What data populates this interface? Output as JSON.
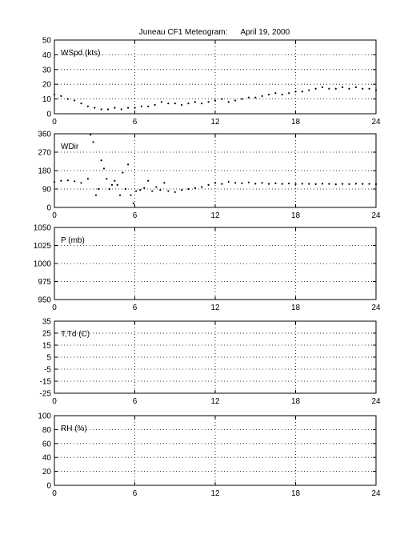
{
  "title": "Juneau CF1 Meteogram:      April 19, 2000",
  "chart_data": [
    {
      "type": "scatter",
      "label": "WSpd (kts)",
      "xlim": [
        0,
        24
      ],
      "ylim": [
        0,
        50
      ],
      "xticks": [
        0,
        6,
        12,
        18,
        24
      ],
      "yticks": [
        0,
        10,
        20,
        30,
        40,
        50
      ],
      "grid": true,
      "series": [
        {
          "x": [
            0,
            0.5,
            1,
            1.5,
            2,
            2.5,
            3,
            3.5,
            4,
            4.5,
            5,
            5.5,
            6,
            6.5,
            7,
            7.5,
            8,
            8.5,
            9,
            9.5,
            10,
            10.5,
            11,
            11.5,
            12,
            12.5,
            13,
            13.5,
            14,
            14.5,
            15,
            15.5,
            16,
            16.5,
            17,
            17.5,
            18,
            18.5,
            19,
            19.5,
            20,
            20.5,
            21,
            21.5,
            22,
            22.5,
            23,
            23.5,
            24
          ],
          "values": [
            13,
            12,
            10,
            9,
            7,
            5,
            4,
            3,
            3,
            4,
            3,
            4,
            4,
            5,
            5,
            6,
            8,
            7,
            7,
            6,
            7,
            8,
            7,
            8,
            9,
            10,
            8,
            9,
            10,
            11,
            11,
            12,
            13,
            14,
            13,
            14,
            15,
            15,
            16,
            17,
            18,
            17,
            17,
            18,
            17,
            18,
            17,
            17,
            16
          ]
        }
      ]
    },
    {
      "type": "scatter",
      "label": "WDir",
      "xlim": [
        0,
        24
      ],
      "ylim": [
        0,
        360
      ],
      "xticks": [
        0,
        6,
        12,
        18,
        24
      ],
      "yticks": [
        0,
        90,
        180,
        270,
        360
      ],
      "grid": true,
      "series": [
        {
          "x": [
            0,
            0.5,
            1,
            1.5,
            2,
            2.5,
            2.7,
            2.9,
            3.1,
            3.3,
            3.5,
            3.7,
            3.9,
            4.1,
            4.3,
            4.5,
            4.7,
            4.9,
            5.1,
            5.3,
            5.5,
            5.7,
            5.9,
            6.1,
            6.4,
            6.7,
            7,
            7.3,
            7.6,
            7.9,
            8.2,
            8.5,
            9,
            9.5,
            10,
            10.5,
            11,
            11.5,
            12,
            12.5,
            13,
            13.5,
            14,
            14.5,
            15,
            15.5,
            16,
            16.5,
            17,
            17.5,
            18,
            18.5,
            19,
            19.5,
            20,
            20.5,
            21,
            21.5,
            22,
            22.5,
            23,
            23.5,
            24
          ],
          "values": [
            125,
            130,
            132,
            128,
            120,
            140,
            355,
            320,
            60,
            90,
            230,
            190,
            140,
            90,
            110,
            130,
            110,
            60,
            170,
            90,
            210,
            60,
            20,
            80,
            85,
            95,
            130,
            80,
            100,
            85,
            120,
            80,
            75,
            85,
            90,
            95,
            100,
            110,
            120,
            115,
            125,
            120,
            118,
            122,
            116,
            120,
            115,
            118,
            115,
            117,
            114,
            116,
            115,
            114,
            116,
            115,
            113,
            115,
            114,
            116,
            115,
            115,
            114
          ]
        }
      ]
    },
    {
      "type": "scatter",
      "label": "P (mb)",
      "xlim": [
        0,
        24
      ],
      "ylim": [
        950,
        1050
      ],
      "xticks": [
        0,
        6,
        12,
        18,
        24
      ],
      "yticks": [
        950,
        975,
        1000,
        1025,
        1050
      ],
      "grid": true,
      "series": []
    },
    {
      "type": "scatter",
      "label": "T,Td (C)",
      "xlim": [
        0,
        24
      ],
      "ylim": [
        -25,
        35
      ],
      "xticks": [
        0,
        6,
        12,
        18,
        24
      ],
      "yticks": [
        -25,
        -15,
        -5,
        5,
        15,
        25,
        35
      ],
      "grid": true,
      "series": []
    },
    {
      "type": "scatter",
      "label": "RH (%)",
      "xlim": [
        0,
        24
      ],
      "ylim": [
        0,
        100
      ],
      "xticks": [
        0,
        6,
        12,
        18,
        24
      ],
      "yticks": [
        0,
        20,
        40,
        60,
        80,
        100
      ],
      "grid": true,
      "series": []
    }
  ]
}
